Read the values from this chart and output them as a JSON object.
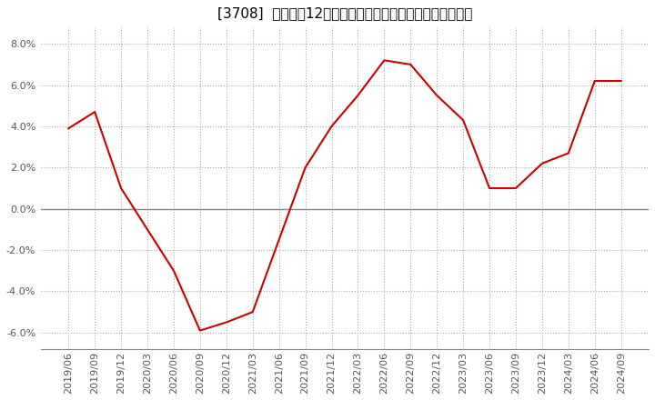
{
  "title": "[3708]  売上高の12か月移動合計の対前年同期増減率の推移",
  "line_color": "#cc0000",
  "background_color": "#ffffff",
  "plot_bg_color": "#ffffff",
  "grid_color": "#aaaaaa",
  "zero_line_color": "#888888",
  "ylim": [
    -0.068,
    0.088
  ],
  "yticks": [
    -0.06,
    -0.04,
    -0.02,
    0.0,
    0.02,
    0.04,
    0.06,
    0.08
  ],
  "dates": [
    "2019/06",
    "2019/09",
    "2019/12",
    "2020/03",
    "2020/06",
    "2020/09",
    "2020/12",
    "2021/03",
    "2021/06",
    "2021/09",
    "2021/12",
    "2022/03",
    "2022/06",
    "2022/09",
    "2022/12",
    "2023/03",
    "2023/06",
    "2023/09",
    "2023/12",
    "2024/03",
    "2024/06",
    "2024/09"
  ],
  "values": [
    0.039,
    0.047,
    0.01,
    -0.01,
    -0.03,
    -0.059,
    -0.055,
    -0.05,
    -0.015,
    0.02,
    0.04,
    0.055,
    0.072,
    0.07,
    0.055,
    0.043,
    0.01,
    0.01,
    0.022,
    0.027,
    0.062,
    0.062
  ],
  "xtick_labels": [
    "2019/06",
    "2019/09",
    "2019/12",
    "2020/03",
    "2020/06",
    "2020/09",
    "2020/12",
    "2021/03",
    "2021/06",
    "2021/09",
    "2021/12",
    "2022/03",
    "2022/06",
    "2022/09",
    "2022/12",
    "2023/03",
    "2023/06",
    "2023/09",
    "2023/12",
    "2024/03",
    "2024/06",
    "2024/09"
  ],
  "title_fontsize": 11,
  "tick_fontsize": 8,
  "ytick_color": "#555555",
  "xtick_color": "#555555"
}
